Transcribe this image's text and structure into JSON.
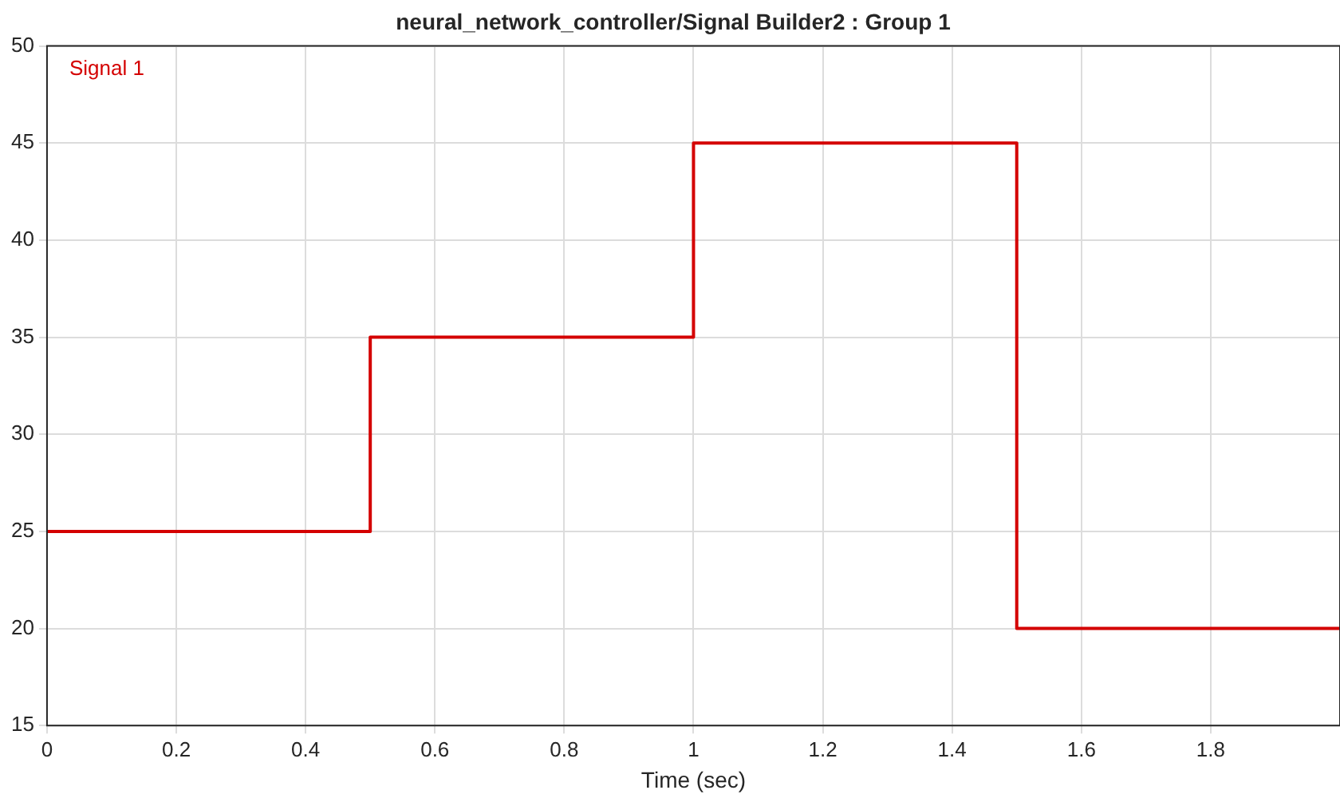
{
  "chart_data": {
    "type": "step",
    "title": "neural_network_controller/Signal Builder2 : Group 1",
    "xlabel": "Time (sec)",
    "x": [
      0,
      0.5,
      1,
      1.5,
      2
    ],
    "series": [
      {
        "name": "Signal 1",
        "color": "#d40000",
        "values": [
          25,
          35,
          45,
          20,
          20
        ]
      }
    ],
    "xlim": [
      0,
      2
    ],
    "xticks": [
      0,
      0.2,
      0.4,
      0.6,
      0.8,
      1,
      1.2,
      1.4,
      1.6,
      1.8
    ],
    "ylim": [
      15,
      50
    ],
    "yticks": [
      15,
      20,
      25,
      30,
      35,
      40,
      45,
      50
    ],
    "grid": true,
    "legend": "top left"
  }
}
